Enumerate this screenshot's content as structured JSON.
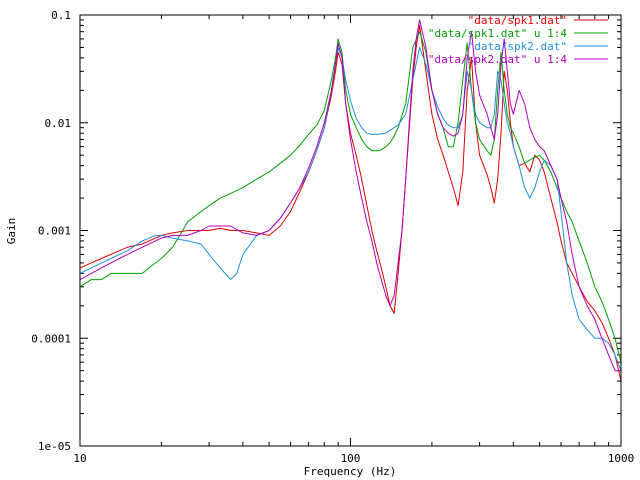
{
  "chart_data": {
    "type": "line",
    "title": "",
    "xlabel": "Frequency (Hz)",
    "ylabel": "Gain",
    "xscale": "log",
    "yscale": "log",
    "xlim": [
      10,
      1000
    ],
    "ylim": [
      1e-05,
      0.1
    ],
    "grid": false,
    "legend_position": "top-right",
    "x_ticks": [
      {
        "value": 10,
        "label": "10"
      },
      {
        "value": 100,
        "label": "100"
      },
      {
        "value": 1000,
        "label": "1000"
      }
    ],
    "y_ticks": [
      {
        "value": 1e-05,
        "label": "1e-05"
      },
      {
        "value": 0.0001,
        "label": "0.0001"
      },
      {
        "value": 0.001,
        "label": "0.001"
      },
      {
        "value": 0.01,
        "label": "0.01"
      },
      {
        "value": 0.1,
        "label": "0.1"
      }
    ],
    "series": [
      {
        "name": "\"data/spk1.dat\"",
        "color": "#e00000",
        "x": [
          10,
          11,
          12,
          13,
          14,
          15,
          17,
          19,
          20,
          22,
          25,
          28,
          30,
          33,
          36,
          40,
          45,
          50,
          55,
          60,
          65,
          70,
          75,
          80,
          85,
          88,
          90,
          93,
          96,
          100,
          105,
          110,
          115,
          120,
          125,
          130,
          135,
          140,
          145,
          150,
          155,
          160,
          165,
          170,
          175,
          180,
          190,
          200,
          210,
          220,
          230,
          240,
          250,
          260,
          270,
          280,
          290,
          300,
          320,
          330,
          340,
          350,
          360,
          370,
          380,
          390,
          400,
          420,
          440,
          460,
          480,
          500,
          520,
          550,
          580,
          600,
          630,
          660,
          700,
          750,
          800,
          850,
          900,
          950,
          1000
        ],
        "y": [
          0.00045,
          0.0005,
          0.00055,
          0.0006,
          0.00065,
          0.0007,
          0.00075,
          0.00085,
          0.0009,
          0.00095,
          0.001,
          0.001,
          0.001,
          0.00105,
          0.001,
          0.001,
          0.00095,
          0.0009,
          0.0011,
          0.0015,
          0.0023,
          0.0035,
          0.0055,
          0.009,
          0.018,
          0.03,
          0.045,
          0.035,
          0.015,
          0.008,
          0.005,
          0.003,
          0.0017,
          0.001,
          0.00065,
          0.00045,
          0.0003,
          0.0002,
          0.00017,
          0.0004,
          0.001,
          0.003,
          0.009,
          0.025,
          0.05,
          0.08,
          0.03,
          0.012,
          0.007,
          0.005,
          0.0035,
          0.0025,
          0.0017,
          0.0035,
          0.02,
          0.04,
          0.01,
          0.005,
          0.0033,
          0.0025,
          0.0018,
          0.003,
          0.008,
          0.03,
          0.02,
          0.01,
          0.006,
          0.004,
          0.0042,
          0.0035,
          0.005,
          0.0045,
          0.0035,
          0.002,
          0.0012,
          0.0008,
          0.0005,
          0.0004,
          0.0003,
          0.00022,
          0.00018,
          0.00014,
          0.0001,
          7e-05,
          4e-05
        ]
      },
      {
        "name": "\"data/spk1.dat\" u 1:4",
        "color": "#00a000",
        "x": [
          10,
          11,
          12,
          13,
          14,
          15,
          17,
          19,
          20,
          22,
          25,
          28,
          30,
          33,
          36,
          40,
          45,
          50,
          55,
          60,
          65,
          70,
          75,
          80,
          85,
          88,
          90,
          93,
          96,
          100,
          105,
          110,
          115,
          120,
          125,
          130,
          135,
          140,
          145,
          150,
          160,
          170,
          180,
          190,
          200,
          210,
          220,
          230,
          240,
          250,
          260,
          270,
          280,
          290,
          300,
          320,
          330,
          340,
          350,
          360,
          370,
          380,
          390,
          400,
          420,
          440,
          460,
          480,
          500,
          520,
          550,
          580,
          600,
          630,
          660,
          700,
          750,
          800,
          850,
          900,
          950,
          1000
        ],
        "y": [
          0.0003,
          0.00035,
          0.00035,
          0.0004,
          0.0004,
          0.0004,
          0.0004,
          0.0005,
          0.00055,
          0.0007,
          0.0012,
          0.0015,
          0.0017,
          0.002,
          0.0022,
          0.0025,
          0.003,
          0.0035,
          0.0042,
          0.005,
          0.0062,
          0.0078,
          0.0095,
          0.013,
          0.025,
          0.04,
          0.06,
          0.045,
          0.02,
          0.012,
          0.009,
          0.007,
          0.006,
          0.0055,
          0.0055,
          0.0056,
          0.006,
          0.0065,
          0.0075,
          0.009,
          0.015,
          0.05,
          0.07,
          0.045,
          0.02,
          0.012,
          0.009,
          0.006,
          0.006,
          0.01,
          0.025,
          0.055,
          0.02,
          0.01,
          0.007,
          0.0055,
          0.005,
          0.007,
          0.02,
          0.045,
          0.02,
          0.012,
          0.009,
          0.008,
          0.006,
          0.0042,
          0.0045,
          0.0048,
          0.005,
          0.0045,
          0.0035,
          0.0025,
          0.002,
          0.0015,
          0.0012,
          0.0008,
          0.0005,
          0.0003,
          0.00022,
          0.00015,
          0.0001,
          6e-05
        ]
      },
      {
        "name": "\"data/spk2.dat\"",
        "color": "#2090e0",
        "x": [
          10,
          11,
          12,
          13,
          14,
          15,
          17,
          19,
          20,
          22,
          25,
          28,
          30,
          33,
          36,
          38,
          40,
          45,
          50,
          55,
          60,
          65,
          70,
          75,
          80,
          85,
          88,
          90,
          93,
          96,
          100,
          105,
          110,
          115,
          120,
          125,
          130,
          135,
          140,
          145,
          150,
          160,
          170,
          180,
          190,
          200,
          210,
          220,
          230,
          240,
          250,
          260,
          270,
          280,
          290,
          300,
          320,
          330,
          340,
          350,
          360,
          370,
          380,
          390,
          400,
          420,
          440,
          460,
          480,
          500,
          520,
          550,
          580,
          600,
          630,
          660,
          700,
          750,
          800,
          850,
          900,
          950,
          1000
        ],
        "y": [
          0.0004,
          0.00045,
          0.0005,
          0.00055,
          0.0006,
          0.00065,
          0.0008,
          0.0009,
          0.0009,
          0.00085,
          0.0008,
          0.00075,
          0.0006,
          0.00045,
          0.00035,
          0.0004,
          0.0006,
          0.0009,
          0.001,
          0.0013,
          0.0018,
          0.0025,
          0.0035,
          0.0055,
          0.009,
          0.02,
          0.035,
          0.05,
          0.04,
          0.025,
          0.016,
          0.011,
          0.009,
          0.008,
          0.0078,
          0.0078,
          0.0079,
          0.008,
          0.0085,
          0.009,
          0.0095,
          0.012,
          0.025,
          0.05,
          0.035,
          0.02,
          0.014,
          0.011,
          0.0095,
          0.009,
          0.009,
          0.012,
          0.03,
          0.02,
          0.012,
          0.01,
          0.009,
          0.009,
          0.012,
          0.03,
          0.025,
          0.015,
          0.01,
          0.008,
          0.006,
          0.004,
          0.0025,
          0.002,
          0.0025,
          0.0035,
          0.0045,
          0.004,
          0.003,
          0.0015,
          0.0005,
          0.00025,
          0.00015,
          0.00012,
          0.0001,
          0.0001,
          9e-05,
          7e-05,
          5e-05
        ]
      },
      {
        "name": "\"data/spk2.dat\" u 1:4",
        "color": "#b000c0",
        "x": [
          10,
          11,
          12,
          13,
          14,
          15,
          17,
          19,
          20,
          22,
          25,
          28,
          30,
          33,
          36,
          40,
          45,
          50,
          55,
          60,
          65,
          70,
          75,
          80,
          85,
          88,
          90,
          93,
          96,
          100,
          105,
          110,
          115,
          120,
          125,
          130,
          135,
          140,
          145,
          150,
          155,
          160,
          165,
          170,
          175,
          180,
          190,
          200,
          210,
          220,
          230,
          240,
          250,
          260,
          270,
          280,
          290,
          300,
          320,
          330,
          340,
          350,
          360,
          370,
          380,
          390,
          400,
          420,
          440,
          460,
          480,
          500,
          520,
          550,
          580,
          600,
          630,
          660,
          700,
          750,
          800,
          850,
          900,
          950,
          1000
        ],
        "y": [
          0.00035,
          0.0004,
          0.00045,
          0.0005,
          0.00055,
          0.0006,
          0.0007,
          0.0008,
          0.00085,
          0.0009,
          0.0009,
          0.001,
          0.0011,
          0.0011,
          0.0011,
          0.00095,
          0.0009,
          0.001,
          0.0013,
          0.0018,
          0.0025,
          0.0038,
          0.006,
          0.01,
          0.02,
          0.035,
          0.055,
          0.04,
          0.015,
          0.007,
          0.0035,
          0.002,
          0.0012,
          0.0008,
          0.0005,
          0.00035,
          0.00025,
          0.0002,
          0.00025,
          0.0005,
          0.001,
          0.003,
          0.01,
          0.03,
          0.06,
          0.09,
          0.05,
          0.02,
          0.012,
          0.009,
          0.008,
          0.0075,
          0.008,
          0.012,
          0.04,
          0.07,
          0.03,
          0.018,
          0.012,
          0.009,
          0.007,
          0.012,
          0.035,
          0.06,
          0.03,
          0.015,
          0.012,
          0.02,
          0.015,
          0.009,
          0.007,
          0.006,
          0.0055,
          0.004,
          0.003,
          0.002,
          0.0012,
          0.0006,
          0.0003,
          0.0002,
          0.00015,
          0.0001,
          7e-05,
          5e-05,
          5e-05
        ]
      }
    ]
  }
}
